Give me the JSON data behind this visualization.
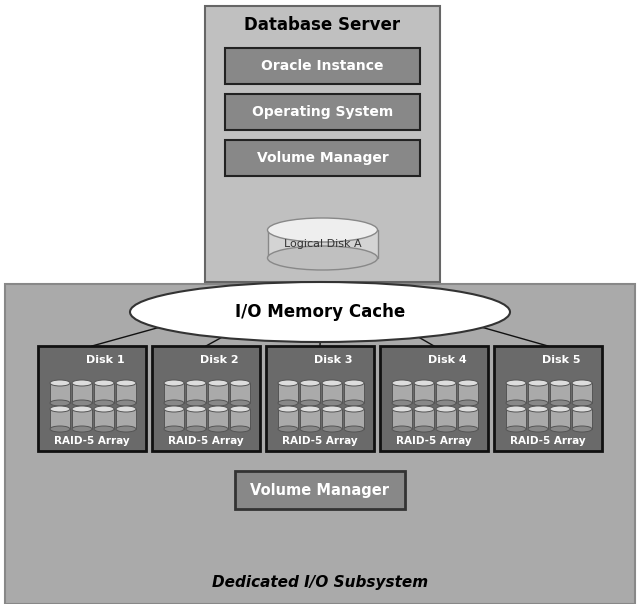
{
  "title": "Database Server",
  "subtitle": "Dedicated I/O Subsystem",
  "server_boxes": [
    "Oracle Instance",
    "Operating System",
    "Volume Manager"
  ],
  "logical_disk_label": "Logical Disk A",
  "cache_label": "I/O Memory Cache",
  "disk_labels": [
    "Disk 1",
    "Disk 2",
    "Disk 3",
    "Disk 4",
    "Disk 5"
  ],
  "raid_label": "RAID-5 Array",
  "volume_manager_label": "Volume Manager",
  "bg_white": "#ffffff",
  "bg_server": "#b8b8b8",
  "bg_subsystem": "#aaaaaa",
  "server_inner_fill": "#c8c8c8",
  "box_fill": "#888888",
  "box_fill_server": "#888888",
  "box_edge": "#222222",
  "box_edge_light": "#555555",
  "disk_box_fill": "#707070",
  "disk_box_edge": "#111111",
  "cache_fill": "#ffffff",
  "cache_edge": "#333333",
  "line_color": "#111111",
  "text_color": "#000000",
  "text_white": "#ffffff",
  "vm_fill": "#888888",
  "vm_fill_bottom": "#777777",
  "figsize": [
    6.4,
    6.04
  ],
  "dpi": 100
}
